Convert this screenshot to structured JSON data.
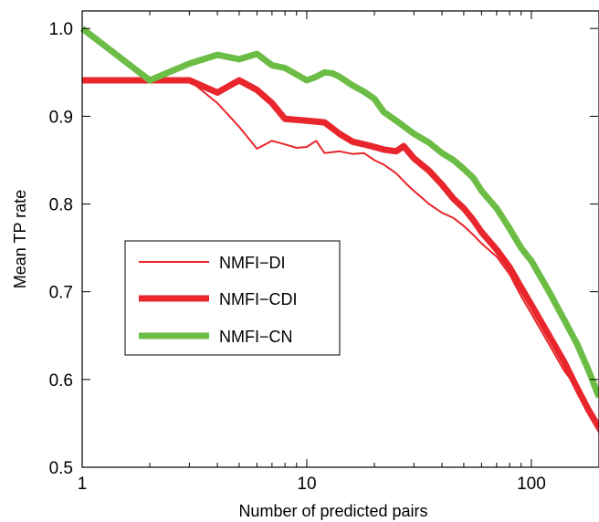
{
  "chart_data": {
    "type": "line",
    "title": "",
    "xlabel": "Number of predicted pairs",
    "ylabel": "Mean TP rate",
    "xscale": "log",
    "xlim": [
      1,
      200
    ],
    "ylim": [
      0.5,
      1.02
    ],
    "xticks": [
      {
        "value": 1,
        "label": "1"
      },
      {
        "value": 10,
        "label": "10"
      },
      {
        "value": 100,
        "label": "100"
      }
    ],
    "yticks": [
      {
        "value": 0.5,
        "label": "0.5"
      },
      {
        "value": 0.6,
        "label": "0.6"
      },
      {
        "value": 0.7,
        "label": "0.7"
      },
      {
        "value": 0.8,
        "label": "0.8"
      },
      {
        "value": 0.9,
        "label": "0.9"
      },
      {
        "value": 1.0,
        "label": "1.0"
      }
    ],
    "grid": false,
    "legend_position": "center-left",
    "series": [
      {
        "name": "NMFI−DI",
        "color": "#e8262b",
        "line_width": "thin",
        "points": [
          [
            1,
            0.941
          ],
          [
            2,
            0.941
          ],
          [
            3,
            0.941
          ],
          [
            4,
            0.915
          ],
          [
            5,
            0.888
          ],
          [
            6,
            0.863
          ],
          [
            7,
            0.872
          ],
          [
            8,
            0.868
          ],
          [
            9,
            0.864
          ],
          [
            10,
            0.865
          ],
          [
            11,
            0.872
          ],
          [
            12,
            0.858
          ],
          [
            14,
            0.86
          ],
          [
            16,
            0.857
          ],
          [
            18,
            0.858
          ],
          [
            20,
            0.85
          ],
          [
            22,
            0.845
          ],
          [
            25,
            0.835
          ],
          [
            28,
            0.822
          ],
          [
            30,
            0.815
          ],
          [
            35,
            0.8
          ],
          [
            40,
            0.79
          ],
          [
            45,
            0.784
          ],
          [
            50,
            0.775
          ],
          [
            55,
            0.765
          ],
          [
            60,
            0.755
          ],
          [
            70,
            0.74
          ],
          [
            80,
            0.72
          ],
          [
            90,
            0.695
          ],
          [
            100,
            0.675
          ],
          [
            120,
            0.64
          ],
          [
            140,
            0.61
          ],
          [
            160,
            0.59
          ],
          [
            180,
            0.56
          ],
          [
            200,
            0.54
          ]
        ]
      },
      {
        "name": "NMFI−CDI",
        "color": "#e8262b",
        "line_width": "thick",
        "points": [
          [
            1,
            0.941
          ],
          [
            2,
            0.941
          ],
          [
            3,
            0.941
          ],
          [
            4,
            0.927
          ],
          [
            5,
            0.941
          ],
          [
            6,
            0.93
          ],
          [
            7,
            0.915
          ],
          [
            8,
            0.897
          ],
          [
            10,
            0.895
          ],
          [
            12,
            0.893
          ],
          [
            14,
            0.88
          ],
          [
            16,
            0.871
          ],
          [
            18,
            0.868
          ],
          [
            20,
            0.865
          ],
          [
            22,
            0.862
          ],
          [
            25,
            0.86
          ],
          [
            27,
            0.866
          ],
          [
            30,
            0.852
          ],
          [
            35,
            0.838
          ],
          [
            40,
            0.822
          ],
          [
            45,
            0.806
          ],
          [
            50,
            0.795
          ],
          [
            55,
            0.782
          ],
          [
            60,
            0.768
          ],
          [
            70,
            0.748
          ],
          [
            80,
            0.728
          ],
          [
            90,
            0.705
          ],
          [
            100,
            0.685
          ],
          [
            120,
            0.65
          ],
          [
            140,
            0.62
          ],
          [
            160,
            0.59
          ],
          [
            180,
            0.565
          ],
          [
            200,
            0.545
          ]
        ]
      },
      {
        "name": "NMFI−CN",
        "color": "#6cbd45",
        "line_width": "thick",
        "points": [
          [
            1,
            1.0
          ],
          [
            2,
            0.941
          ],
          [
            3,
            0.96
          ],
          [
            4,
            0.97
          ],
          [
            5,
            0.965
          ],
          [
            6,
            0.971
          ],
          [
            7,
            0.958
          ],
          [
            8,
            0.955
          ],
          [
            10,
            0.941
          ],
          [
            11,
            0.945
          ],
          [
            12,
            0.95
          ],
          [
            13,
            0.949
          ],
          [
            14,
            0.945
          ],
          [
            16,
            0.935
          ],
          [
            18,
            0.928
          ],
          [
            20,
            0.92
          ],
          [
            22,
            0.905
          ],
          [
            25,
            0.895
          ],
          [
            30,
            0.88
          ],
          [
            35,
            0.87
          ],
          [
            40,
            0.858
          ],
          [
            45,
            0.85
          ],
          [
            50,
            0.84
          ],
          [
            55,
            0.83
          ],
          [
            60,
            0.815
          ],
          [
            70,
            0.795
          ],
          [
            80,
            0.772
          ],
          [
            90,
            0.75
          ],
          [
            100,
            0.735
          ],
          [
            120,
            0.7
          ],
          [
            140,
            0.668
          ],
          [
            160,
            0.64
          ],
          [
            180,
            0.61
          ],
          [
            200,
            0.58
          ]
        ]
      }
    ]
  }
}
